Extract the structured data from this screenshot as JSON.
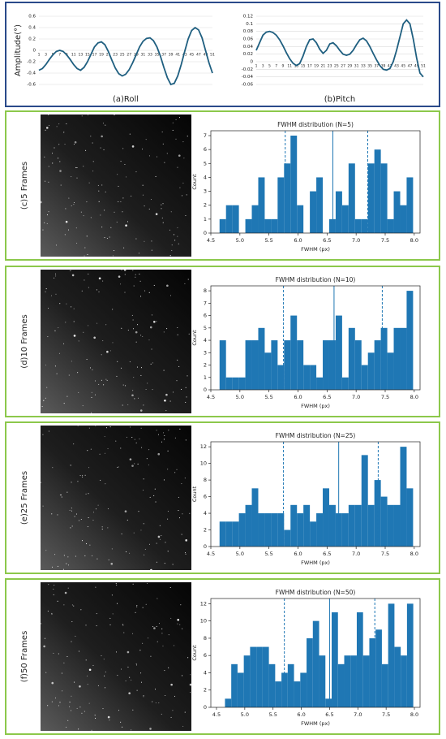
{
  "chart_data": [
    {
      "type": "line",
      "title": "(a)Roll",
      "ylabel": "Amplitude(°)",
      "color": "#1f5f80",
      "grid": true,
      "x": [
        1,
        2,
        3,
        4,
        5,
        6,
        7,
        8,
        9,
        10,
        11,
        12,
        13,
        14,
        15,
        16,
        17,
        18,
        19,
        20,
        21,
        22,
        23,
        24,
        25,
        26,
        27,
        28,
        29,
        30,
        31,
        32,
        33,
        34,
        35,
        36,
        37,
        38,
        39,
        40,
        41,
        42,
        43,
        44,
        45,
        46,
        47,
        48,
        49,
        50,
        51
      ],
      "values": [
        -0.35,
        -0.32,
        -0.25,
        -0.16,
        -0.08,
        -0.02,
        0.0,
        -0.02,
        -0.08,
        -0.16,
        -0.25,
        -0.32,
        -0.35,
        -0.3,
        -0.2,
        -0.07,
        0.06,
        0.13,
        0.15,
        0.1,
        -0.02,
        -0.17,
        -0.31,
        -0.41,
        -0.45,
        -0.42,
        -0.34,
        -0.22,
        -0.08,
        0.06,
        0.16,
        0.21,
        0.22,
        0.17,
        0.06,
        -0.1,
        -0.3,
        -0.48,
        -0.6,
        -0.58,
        -0.45,
        -0.25,
        -0.02,
        0.2,
        0.35,
        0.4,
        0.36,
        0.22,
        0.0,
        -0.22,
        -0.4
      ],
      "xlim": [
        1,
        51
      ],
      "xticks": [
        1,
        3,
        5,
        7,
        9,
        11,
        13,
        15,
        17,
        19,
        21,
        23,
        25,
        27,
        29,
        31,
        33,
        35,
        37,
        39,
        41,
        43,
        45,
        47,
        49,
        51
      ],
      "ylim": [
        -0.6,
        0.6
      ],
      "yticks": [
        -0.6,
        -0.4,
        -0.2,
        0,
        0.2,
        0.4,
        0.6
      ]
    },
    {
      "type": "line",
      "title": "(b)Pitch",
      "color": "#1f5f80",
      "grid": true,
      "x": [
        1,
        2,
        3,
        4,
        5,
        6,
        7,
        8,
        9,
        10,
        11,
        12,
        13,
        14,
        15,
        16,
        17,
        18,
        19,
        20,
        21,
        22,
        23,
        24,
        25,
        26,
        27,
        28,
        29,
        30,
        31,
        32,
        33,
        34,
        35,
        36,
        37,
        38,
        39,
        40,
        41,
        42,
        43,
        44,
        45,
        46,
        47,
        48,
        49,
        50,
        51
      ],
      "values": [
        0.03,
        0.05,
        0.07,
        0.078,
        0.08,
        0.077,
        0.07,
        0.058,
        0.042,
        0.024,
        0.008,
        -0.004,
        -0.01,
        -0.005,
        0.015,
        0.04,
        0.058,
        0.06,
        0.05,
        0.033,
        0.022,
        0.03,
        0.047,
        0.05,
        0.042,
        0.03,
        0.02,
        0.017,
        0.02,
        0.03,
        0.045,
        0.058,
        0.062,
        0.055,
        0.04,
        0.022,
        0.005,
        -0.01,
        -0.02,
        -0.022,
        -0.018,
        0.0,
        0.03,
        0.065,
        0.1,
        0.11,
        0.1,
        0.06,
        0.01,
        -0.03,
        -0.04
      ],
      "xlim": [
        1,
        51
      ],
      "xticks": [
        1,
        3,
        5,
        7,
        9,
        11,
        13,
        15,
        17,
        19,
        21,
        23,
        25,
        27,
        29,
        31,
        33,
        35,
        37,
        39,
        41,
        43,
        45,
        47,
        49,
        51
      ],
      "ylim": [
        -0.06,
        0.12
      ],
      "yticks": [
        -0.06,
        -0.04,
        -0.02,
        0,
        0.02,
        0.04,
        0.06,
        0.08,
        0.1,
        0.12
      ]
    },
    {
      "type": "histogram",
      "panel_label": "(c)5  Frames",
      "title": "FWHM distribution (N=5)",
      "xlabel": "FWHM (px)",
      "ylabel": "Count",
      "color": "#1f77b4",
      "bins": [
        4.65,
        4.761,
        4.872,
        4.983,
        5.094,
        5.205,
        5.316,
        5.427,
        5.538,
        5.649,
        5.76,
        5.871,
        5.982,
        6.093,
        6.204,
        6.315,
        6.426,
        6.537,
        6.648,
        6.759,
        6.87,
        6.981,
        7.092,
        7.203,
        7.314,
        7.425,
        7.536,
        7.647,
        7.758,
        7.869,
        7.98
      ],
      "values": [
        1,
        2,
        2,
        0,
        1,
        2,
        4,
        1,
        1,
        4,
        5,
        7,
        2,
        0,
        3,
        4,
        0,
        1,
        3,
        2,
        5,
        1,
        1,
        5,
        6,
        5,
        1,
        3,
        2,
        4
      ],
      "vlines": [
        {
          "value": 5.78,
          "dashed": true
        },
        {
          "value": 6.6,
          "dashed": false
        },
        {
          "value": 7.2,
          "dashed": true
        }
      ],
      "xlim": [
        4.5,
        8.1
      ],
      "xticks": [
        4.5,
        {
          "value": 5,
          "label": "5.0"
        },
        5.5,
        {
          "value": 6,
          "label": "6.0"
        },
        6.5,
        {
          "value": 7,
          "label": "7.0"
        },
        7.5,
        {
          "value": 8,
          "label": "8.0"
        }
      ],
      "ylim": [
        0,
        7.35
      ],
      "yticks": [
        0,
        1,
        2,
        3,
        4,
        5,
        6,
        7
      ]
    },
    {
      "type": "histogram",
      "panel_label": "(d)10  Frames",
      "title": "FWHM distribution (N=10)",
      "xlabel": "FWHM (px)",
      "ylabel": "Count",
      "color": "#1f77b4",
      "bins": [
        4.65,
        4.761,
        4.872,
        4.983,
        5.094,
        5.205,
        5.316,
        5.427,
        5.538,
        5.649,
        5.76,
        5.871,
        5.982,
        6.093,
        6.204,
        6.315,
        6.426,
        6.537,
        6.648,
        6.759,
        6.87,
        6.981,
        7.092,
        7.203,
        7.314,
        7.425,
        7.536,
        7.647,
        7.758,
        7.869,
        7.98
      ],
      "values": [
        4,
        1,
        1,
        1,
        4,
        4,
        5,
        3,
        4,
        2,
        4,
        6,
        4,
        2,
        2,
        1,
        4,
        4,
        6,
        1,
        5,
        4,
        2,
        3,
        4,
        5,
        3,
        5,
        5,
        8
      ],
      "vlines": [
        {
          "value": 5.75,
          "dashed": true
        },
        {
          "value": 6.62,
          "dashed": false
        },
        {
          "value": 7.45,
          "dashed": true
        }
      ],
      "xlim": [
        4.5,
        8.1
      ],
      "xticks": [
        4.5,
        {
          "value": 5,
          "label": "5.0"
        },
        5.5,
        {
          "value": 6,
          "label": "6.0"
        },
        6.5,
        {
          "value": 7,
          "label": "7.0"
        },
        7.5,
        {
          "value": 8,
          "label": "8.0"
        }
      ],
      "ylim": [
        0,
        8.4
      ],
      "yticks": [
        0,
        1,
        2,
        3,
        4,
        5,
        6,
        7,
        8
      ]
    },
    {
      "type": "histogram",
      "panel_label": "(e)25  Frames",
      "title": "FWHM distribution (N=25)",
      "xlabel": "FWHM (px)",
      "ylabel": "Count",
      "color": "#1f77b4",
      "bins": [
        4.65,
        4.761,
        4.872,
        4.983,
        5.094,
        5.205,
        5.316,
        5.427,
        5.538,
        5.649,
        5.76,
        5.871,
        5.982,
        6.093,
        6.204,
        6.315,
        6.426,
        6.537,
        6.648,
        6.759,
        6.87,
        6.981,
        7.092,
        7.203,
        7.314,
        7.425,
        7.536,
        7.647,
        7.758,
        7.869,
        7.98
      ],
      "values": [
        3,
        3,
        3,
        4,
        5,
        7,
        4,
        4,
        4,
        4,
        2,
        5,
        4,
        5,
        3,
        4,
        7,
        5,
        4,
        4,
        5,
        5,
        11,
        5,
        8,
        6,
        5,
        5,
        12,
        7
      ],
      "vlines": [
        {
          "value": 5.75,
          "dashed": true
        },
        {
          "value": 6.7,
          "dashed": false
        },
        {
          "value": 7.38,
          "dashed": true
        }
      ],
      "xlim": [
        4.5,
        8.1
      ],
      "xticks": [
        4.5,
        {
          "value": 5,
          "label": "5.0"
        },
        5.5,
        {
          "value": 6,
          "label": "6.0"
        },
        6.5,
        {
          "value": 7,
          "label": "7.0"
        },
        7.5,
        {
          "value": 8,
          "label": "8.0"
        }
      ],
      "ylim": [
        0,
        12.6
      ],
      "yticks": [
        0,
        2,
        4,
        6,
        8,
        10,
        12
      ]
    },
    {
      "type": "histogram",
      "panel_label": "(f)50  Frames",
      "title": "FWHM distribution (N=50)",
      "xlabel": "FWHM (px)",
      "ylabel": "Count",
      "color": "#1f77b4",
      "bins": [
        4.65,
        4.761,
        4.872,
        4.983,
        5.094,
        5.205,
        5.316,
        5.427,
        5.538,
        5.649,
        5.76,
        5.871,
        5.982,
        6.093,
        6.204,
        6.315,
        6.426,
        6.537,
        6.648,
        6.759,
        6.87,
        6.981,
        7.092,
        7.203,
        7.314,
        7.425,
        7.536,
        7.647,
        7.758,
        7.869,
        7.98
      ],
      "values": [
        1,
        5,
        4,
        6,
        7,
        7,
        7,
        5,
        3,
        4,
        5,
        3,
        4,
        8,
        10,
        6,
        1,
        11,
        5,
        6,
        6,
        11,
        6,
        8,
        9,
        5,
        12,
        7,
        6,
        12
      ],
      "vlines": [
        {
          "value": 5.7,
          "dashed": true
        },
        {
          "value": 6.5,
          "dashed": false
        },
        {
          "value": 7.3,
          "dashed": true
        }
      ],
      "xlim": [
        4.4,
        8.1
      ],
      "xticks": [
        4.5,
        {
          "value": 5,
          "label": "5.0"
        },
        5.5,
        {
          "value": 6,
          "label": "6.0"
        },
        6.5,
        {
          "value": 7,
          "label": "7.0"
        },
        7.5,
        {
          "value": 8,
          "label": "8.0"
        }
      ],
      "ylim": [
        0,
        12.6
      ],
      "yticks": [
        0,
        2,
        4,
        6,
        8,
        10,
        12
      ]
    }
  ]
}
